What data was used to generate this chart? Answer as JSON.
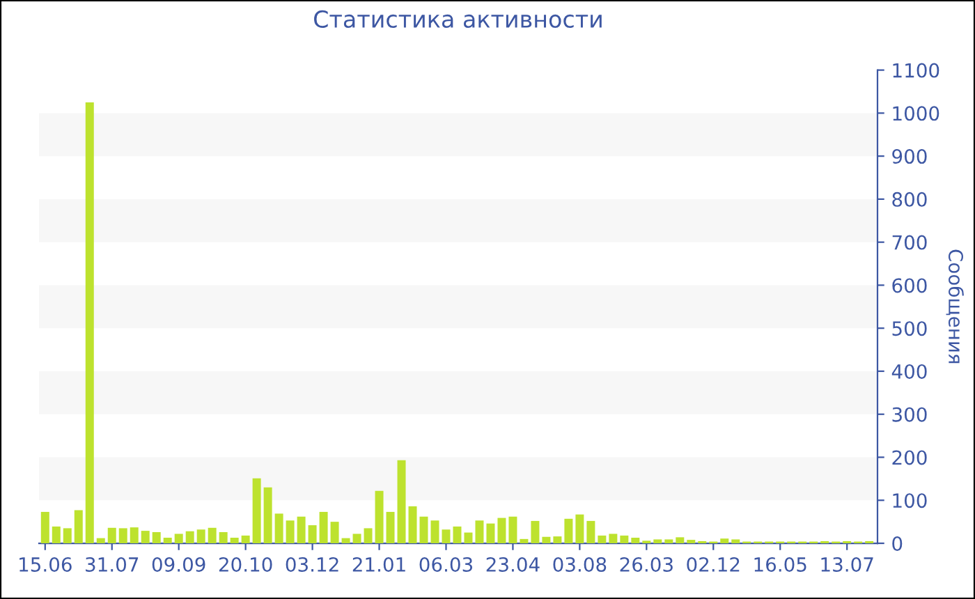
{
  "chart_data": {
    "type": "bar",
    "title": "Статистика активности",
    "ylabel": "Сообщения",
    "categories": [
      "15.06",
      null,
      null,
      null,
      null,
      null,
      "31.07",
      null,
      null,
      null,
      null,
      null,
      "09.09",
      null,
      null,
      null,
      null,
      null,
      "20.10",
      null,
      null,
      null,
      null,
      null,
      "03.12",
      null,
      null,
      null,
      null,
      null,
      "21.01",
      null,
      null,
      null,
      null,
      null,
      "06.03",
      null,
      null,
      null,
      null,
      null,
      "23.04",
      null,
      null,
      null,
      null,
      null,
      "03.08",
      null,
      null,
      null,
      null,
      null,
      "26.03",
      null,
      null,
      null,
      null,
      null,
      "02.12",
      null,
      null,
      null,
      null,
      null,
      "16.05",
      null,
      null,
      null,
      null,
      null,
      "13.07",
      null,
      null
    ],
    "values": [
      73,
      39,
      35,
      77,
      1025,
      12,
      36,
      35,
      37,
      29,
      26,
      13,
      22,
      28,
      32,
      36,
      26,
      13,
      18,
      151,
      130,
      69,
      53,
      62,
      42,
      73,
      50,
      12,
      22,
      35,
      122,
      73,
      193,
      86,
      62,
      53,
      32,
      39,
      25,
      53,
      46,
      59,
      62,
      10,
      52,
      15,
      16,
      57,
      67,
      52,
      18,
      22,
      18,
      13,
      6,
      9,
      9,
      14,
      8,
      5,
      4,
      11,
      9,
      4,
      4,
      4,
      4,
      4,
      4,
      4,
      5,
      4,
      5,
      4,
      5
    ],
    "color": "#bde22e",
    "ylim": [
      0,
      1100
    ],
    "yticks": [
      0,
      100,
      200,
      300,
      400,
      500,
      600,
      700,
      800,
      900,
      1000,
      1100
    ],
    "bands": [
      {
        "axis": "y",
        "from": 100,
        "to": 200,
        "color": "#f7f7f7"
      },
      {
        "axis": "y",
        "from": 300,
        "to": 400,
        "color": "#f7f7f7"
      },
      {
        "axis": "y",
        "from": 500,
        "to": 600,
        "color": "#f7f7f7"
      },
      {
        "axis": "y",
        "from": 700,
        "to": 800,
        "color": "#f7f7f7"
      },
      {
        "axis": "y",
        "from": 900,
        "to": 1000,
        "color": "#f7f7f7"
      }
    ],
    "grid": false,
    "legend": false
  }
}
